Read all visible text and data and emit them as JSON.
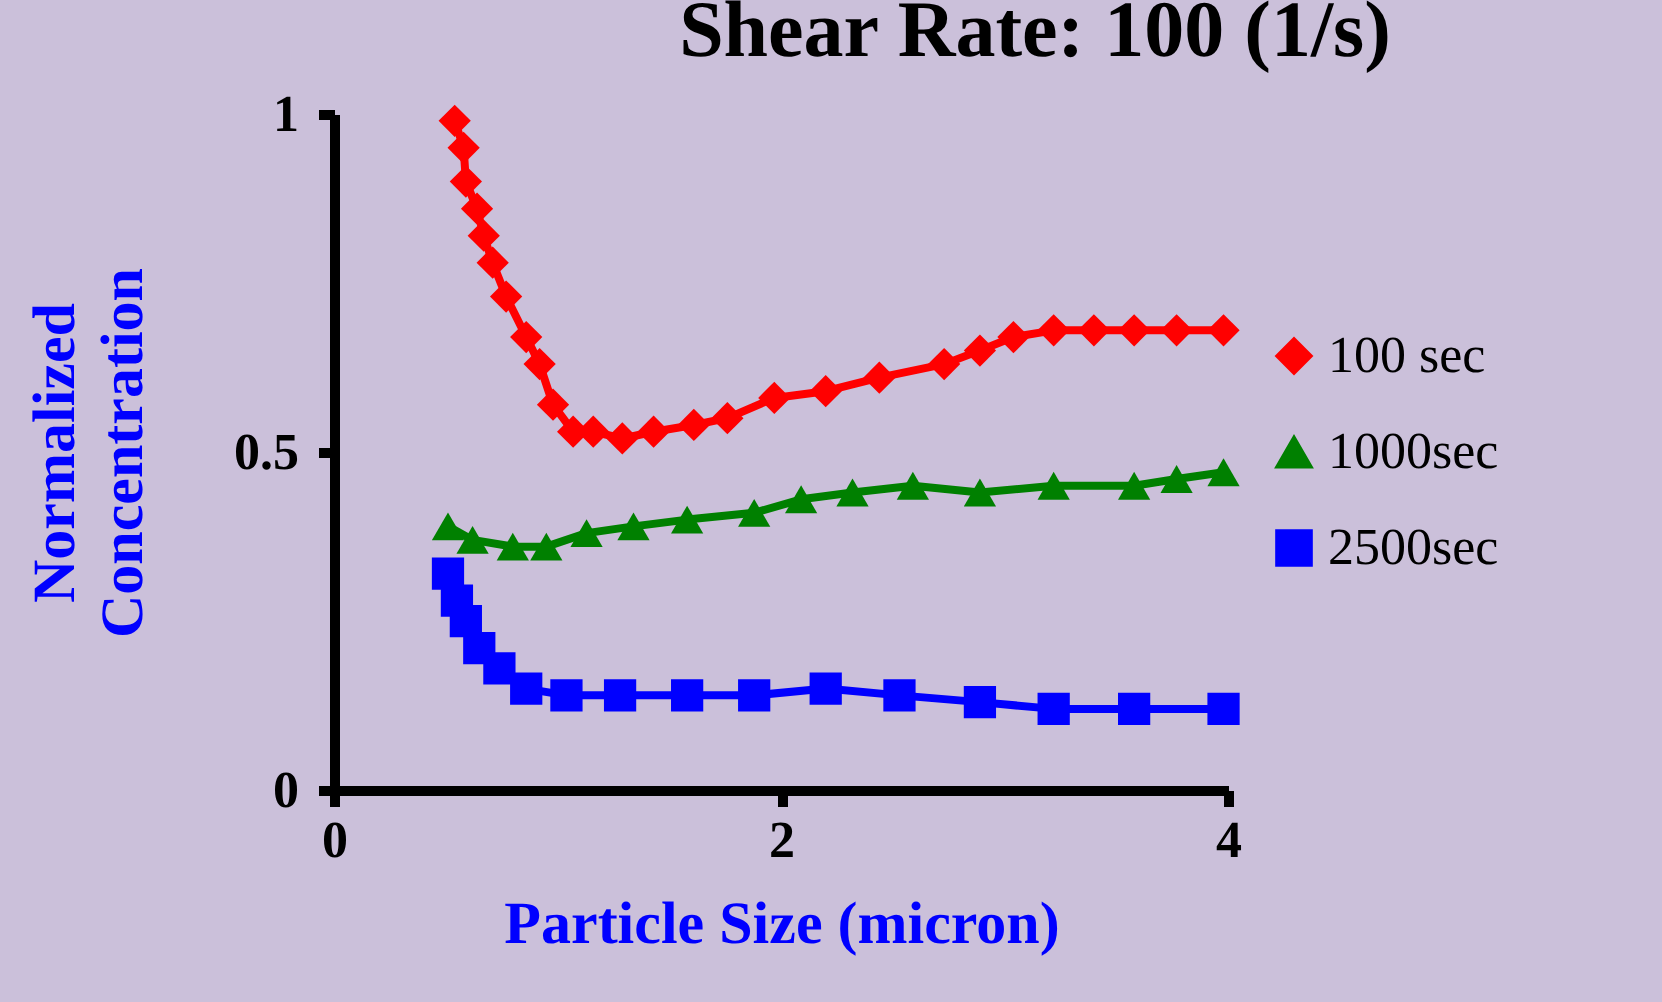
{
  "chart_data": {
    "type": "line",
    "title": "Shear Rate: 100 (1/s)",
    "xlabel": "Particle Size (micron)",
    "ylabel": "Normalized\nConcentration",
    "xlim": [
      0,
      4
    ],
    "xticks": [
      0,
      2,
      4
    ],
    "ylim": [
      0,
      1
    ],
    "yticks": [
      0,
      0.5,
      1
    ],
    "grid": false,
    "legend": "right",
    "series": [
      {
        "name": "100 sec",
        "color": "#ff0000",
        "marker": "diamond",
        "x": [
          0.54,
          0.58,
          0.59,
          0.64,
          0.67,
          0.71,
          0.77,
          0.86,
          0.92,
          0.98,
          1.07,
          1.16,
          1.29,
          1.43,
          1.61,
          1.76,
          1.97,
          2.2,
          2.44,
          2.73,
          2.89,
          3.04,
          3.22,
          3.4,
          3.58,
          3.77,
          3.98
        ],
        "values": [
          0.99,
          0.95,
          0.9,
          0.86,
          0.82,
          0.78,
          0.73,
          0.67,
          0.63,
          0.57,
          0.53,
          0.53,
          0.52,
          0.53,
          0.54,
          0.55,
          0.58,
          0.59,
          0.61,
          0.63,
          0.65,
          0.67,
          0.68,
          0.68,
          0.68,
          0.68,
          0.68
        ]
      },
      {
        "name": "1000sec",
        "color": "#008000",
        "marker": "triangle",
        "x": [
          0.51,
          0.62,
          0.8,
          0.95,
          1.13,
          1.34,
          1.58,
          1.88,
          2.09,
          2.32,
          2.59,
          2.89,
          3.22,
          3.58,
          3.77,
          3.98
        ],
        "values": [
          0.39,
          0.37,
          0.36,
          0.36,
          0.38,
          0.39,
          0.4,
          0.41,
          0.43,
          0.44,
          0.45,
          0.44,
          0.45,
          0.45,
          0.46,
          0.47
        ]
      },
      {
        "name": "2500sec",
        "color": "#0000ff",
        "marker": "square",
        "x": [
          0.51,
          0.55,
          0.59,
          0.65,
          0.74,
          0.86,
          1.04,
          1.28,
          1.58,
          1.88,
          2.2,
          2.53,
          2.89,
          3.22,
          3.58,
          3.98
        ],
        "values": [
          0.32,
          0.28,
          0.25,
          0.21,
          0.18,
          0.15,
          0.14,
          0.14,
          0.14,
          0.14,
          0.15,
          0.14,
          0.13,
          0.12,
          0.12,
          0.12
        ]
      }
    ]
  }
}
